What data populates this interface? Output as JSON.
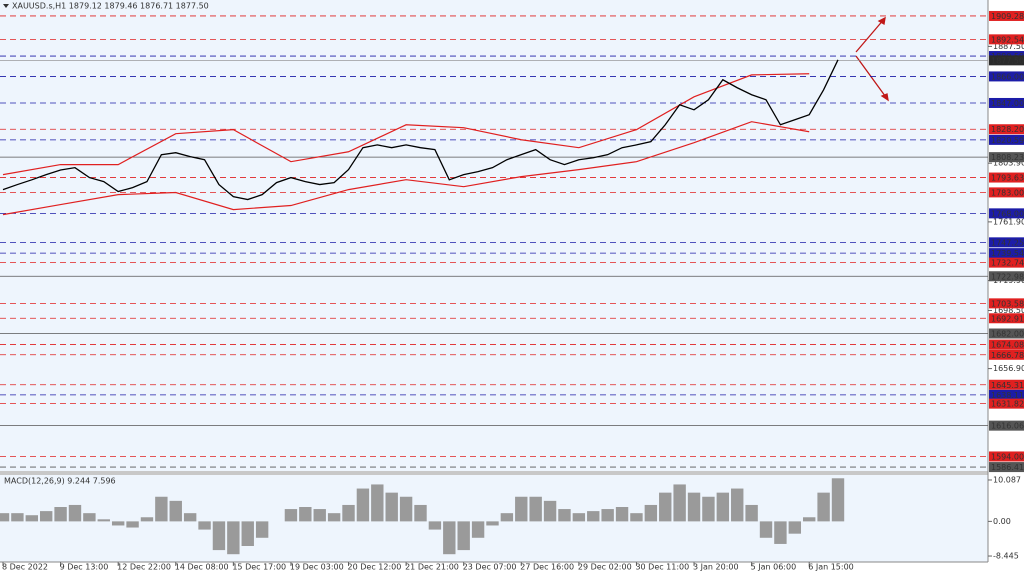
{
  "chart_data": [
    {
      "type": "line",
      "title": "XAUUSD.s,H1  1879.12 1879.46 1876.71 1877.50",
      "categories": [
        "8 Dec 2022",
        null,
        null,
        null,
        "9 Dec 13:00",
        null,
        null,
        null,
        "12 Dec 22:00",
        null,
        null,
        null,
        "14 Dec 08:00",
        null,
        null,
        null,
        "15 Dec 17:00",
        null,
        null,
        null,
        "19 Dec 03:00",
        null,
        null,
        null,
        "20 Dec 12:00",
        null,
        null,
        null,
        "21 Dec 21:00",
        null,
        null,
        null,
        "23 Dec 07:00",
        null,
        null,
        null,
        "27 Dec 16:00",
        null,
        null,
        null,
        "29 Dec 02:00",
        null,
        null,
        null,
        "30 Dec 11:00",
        null,
        null,
        null,
        "3 Jan 20:00",
        null,
        null,
        null,
        "5 Jan 06:00",
        null,
        null,
        null,
        "6 Jan 15:00",
        null,
        null
      ],
      "series": [
        {
          "color": "#000000",
          "values": [
            1785,
            1788.6,
            1792,
            1795.7,
            1799,
            1800.7,
            1793.6,
            1790.7,
            1783.6,
            1786.4,
            1790.7,
            1810,
            1811.4,
            1808.6,
            1806.4,
            1788.6,
            1780,
            1777.9,
            1781.4,
            1790,
            1793.6,
            1790.7,
            1788.6,
            1790,
            1799.3,
            1815,
            1817,
            1815,
            1817,
            1815,
            1813.6,
            1792,
            1795.7,
            1797.9,
            1800.7,
            1806.4,
            1810,
            1813.6,
            1806.4,
            1802.9,
            1806.4,
            1807.8,
            1810,
            1815,
            1817,
            1819.3,
            1831.4,
            1845.7,
            1842.1,
            1849.3,
            1863.6,
            1857.9,
            1852.9,
            1849.3,
            1831.4,
            1835,
            1838.6,
            1856.4,
            1877.9
          ]
        }
      ],
      "bands": {
        "x": [
          0,
          4,
          8,
          12,
          16,
          20,
          24,
          28,
          32,
          36,
          40,
          44,
          48,
          52,
          56
        ],
        "color": "#e02020",
        "upper": [
          1795.7,
          1802.9,
          1802.9,
          1825,
          1827.9,
          1805,
          1812.1,
          1831.4,
          1829.3,
          1820.7,
          1815,
          1827.9,
          1851.4,
          1867.1,
          1867.9
        ],
        "lower": [
          1767.1,
          1774.3,
          1781.4,
          1782.9,
          1770.7,
          1773.6,
          1785,
          1792.1,
          1787.1,
          1794.3,
          1799.3,
          1805,
          1818.6,
          1833.6,
          1826.4
        ]
      },
      "ylim": [
        1583.6,
        1920.7
      ],
      "yticks": [
        {
          "value": 1887.5,
          "label": "1887.50"
        },
        {
          "value": 1803.9,
          "label": "1803.90"
        },
        {
          "value": 1761.9,
          "label": "1761.90"
        },
        {
          "value": 1719.9,
          "label": "1719.90"
        },
        {
          "value": 1698.5,
          "label": "1698.50"
        },
        {
          "value": 1656.9,
          "label": "1656.90"
        }
      ],
      "levels": [
        {
          "value": 1909.28,
          "color": "#e02020",
          "dash": true
        },
        {
          "value": 1892.54,
          "color": "#e02020",
          "dash": true
        },
        {
          "value": 1880.59,
          "color": "#1c1ca8",
          "dash": true
        },
        {
          "value": 1866,
          "label": "1866.00",
          "color": "#1c1ca8",
          "dash": true
        },
        {
          "value": 1847,
          "label": "1847.00",
          "color": "#1c1ca8",
          "dash": true
        },
        {
          "value": 1828.2,
          "label": "1828.20",
          "color": "#e02020",
          "dash": true
        },
        {
          "value": 1820.59,
          "color": "#1c1ca8",
          "dash": true
        },
        {
          "value": 1808.23,
          "color": "#555555",
          "dash": false
        },
        {
          "value": 1793.63,
          "color": "#e02020",
          "dash": true
        },
        {
          "value": 1783,
          "label": "1783.00",
          "color": "#e02020",
          "dash": true
        },
        {
          "value": 1768,
          "label": "1768.00",
          "color": "#1c1ca8",
          "dash": true
        },
        {
          "value": 1747.25,
          "color": "#1c1ca8",
          "dash": true
        },
        {
          "value": 1739.54,
          "color": "#1c1ca8",
          "dash": true
        },
        {
          "value": 1732.74,
          "color": "#e02020",
          "dash": true
        },
        {
          "value": 1722.98,
          "color": "#555555",
          "dash": false
        },
        {
          "value": 1703.58,
          "color": "#e02020",
          "dash": true
        },
        {
          "value": 1692.91,
          "color": "#e02020",
          "dash": true
        },
        {
          "value": 1682,
          "label": "1682.00",
          "color": "#555555",
          "dash": false
        },
        {
          "value": 1674.08,
          "color": "#e02020",
          "dash": true
        },
        {
          "value": 1666.78,
          "color": "#e02020",
          "dash": true
        },
        {
          "value": 1645.31,
          "color": "#e02020",
          "dash": true
        },
        {
          "value": 1638.11,
          "color": "#1c1ca8",
          "dash": true
        },
        {
          "value": 1631.82,
          "color": "#e02020",
          "dash": true
        },
        {
          "value": 1616.06,
          "color": "#555555",
          "dash": false
        },
        {
          "value": 1594,
          "label": "1594.00",
          "color": "#e02020",
          "dash": true
        },
        {
          "value": 1586.41,
          "color": "#555555",
          "dash": true
        }
      ],
      "current_price": {
        "value": 1877.5,
        "label": "1877.50"
      }
    },
    {
      "type": "bar",
      "title": "MACD(12,26,9) 9.244 7.596",
      "color": "#9a9a9a",
      "values": [
        2,
        2,
        1.5,
        2.5,
        3.5,
        4,
        2,
        0.5,
        -1,
        -1.5,
        1,
        6,
        5,
        2,
        -2,
        -7,
        -8,
        -6,
        -4,
        0,
        3,
        3.5,
        3,
        2,
        4,
        8,
        9,
        7,
        6,
        4,
        -2,
        -8,
        -7,
        -4,
        -1,
        2,
        6,
        6,
        5,
        3,
        2,
        2.5,
        3,
        3.5,
        2,
        4,
        7,
        9,
        7,
        6,
        7,
        8,
        4,
        -4,
        -5.5,
        -3,
        1,
        7,
        10.5
      ],
      "ylim": [
        -9.9,
        11.3
      ],
      "yticks": [
        10.087,
        {
          "value": 0,
          "label": "0.00"
        },
        -8.445
      ]
    }
  ]
}
